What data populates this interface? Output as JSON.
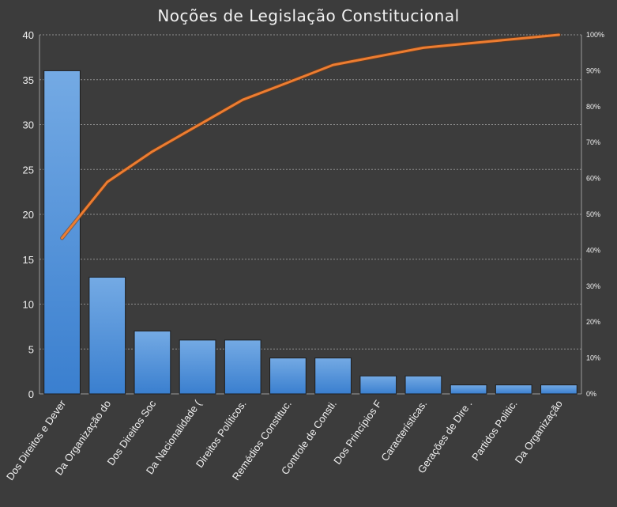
{
  "chart_data": {
    "type": "bar",
    "title": "Noções de Legislação  Constitucional",
    "categories": [
      "Dos Direitos e Dever",
      "Da Organização do",
      "Dos Direitos Soc",
      "Da Nacionalidade (",
      "Direitos Políticos.",
      "Remédios Constituc.",
      "Controle de Consti.",
      "Dos Princípios F",
      "Características.",
      "Gerações de Dire .",
      "Partidos Politic.",
      "Da Organização"
    ],
    "series": [
      {
        "type": "bar",
        "values": [
          36,
          13,
          7,
          6,
          6,
          4,
          4,
          2,
          2,
          1,
          1,
          1
        ]
      },
      {
        "type": "line",
        "axis": "secondary",
        "values": [
          43.4,
          59.0,
          67.5,
          74.7,
          81.9,
          86.7,
          91.6,
          94.0,
          96.4,
          97.6,
          98.8,
          100.0
        ]
      }
    ],
    "ylim": [
      0,
      40
    ],
    "yticks": [
      "0",
      "5",
      "10",
      "15",
      "20",
      "25",
      "30",
      "35",
      "40"
    ],
    "y2lim": [
      0,
      100
    ],
    "y2ticks": [
      "0%",
      "10%",
      "20%",
      "30%",
      "40%",
      "50%",
      "60%",
      "70%",
      "80%",
      "90%",
      "100%"
    ],
    "grid": true,
    "legend": "none",
    "colors": {
      "background": "#3c3c3c",
      "bar_top": "#74aae4",
      "bar_bottom": "#3a7fcf",
      "bar_stroke": "#1f1f1f",
      "line": "#ed7d31",
      "grid": "#8f8f8f",
      "text": "#f0f0f0"
    }
  }
}
